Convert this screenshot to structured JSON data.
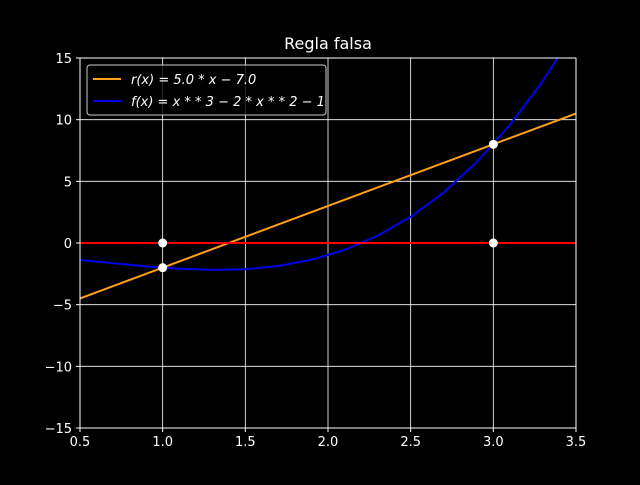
{
  "chart_data": {
    "type": "line",
    "title": "Regla falsa",
    "xlabel": "",
    "ylabel": "",
    "xlim": [
      0.5,
      3.5
    ],
    "ylim": [
      -15,
      15
    ],
    "xticks": [
      0.5,
      1.0,
      1.5,
      2.0,
      2.5,
      3.0,
      3.5
    ],
    "xtick_labels": [
      "0.5",
      "1.0",
      "1.5",
      "2.0",
      "2.5",
      "3.0",
      "3.5"
    ],
    "yticks": [
      -15,
      -10,
      -5,
      0,
      5,
      10,
      15
    ],
    "ytick_labels": [
      "−15",
      "−10",
      "−5",
      "0",
      "5",
      "10",
      "15"
    ],
    "grid": true,
    "legend_position": "top-left",
    "background": "#000000",
    "series": [
      {
        "name": "r(x) = 5.0 * x − 7.0",
        "color": "#ff9f1c",
        "x": [
          0.5,
          3.5
        ],
        "y": [
          -4.5,
          10.5
        ]
      },
      {
        "name": "f(x) = x * * 3 − 2 * x * * 2 − 1",
        "color": "#0000ee",
        "x": [
          0.5,
          0.7,
          0.9,
          1.1,
          1.3,
          1.5,
          1.7,
          1.9,
          2.1,
          2.3,
          2.5,
          2.7,
          2.9,
          3.1,
          3.3,
          3.5
        ],
        "y": [
          -1.375,
          -1.637,
          -1.891,
          -2.089,
          -2.183,
          -2.125,
          -1.867,
          -1.361,
          -0.559,
          0.587,
          2.125,
          4.103,
          6.569,
          9.571,
          13.157,
          17.375
        ]
      },
      {
        "name": "",
        "color": "#ff0000",
        "x": [
          0.5,
          3.5
        ],
        "y": [
          0,
          0
        ]
      }
    ],
    "points": [
      {
        "x": 1,
        "y": 0
      },
      {
        "x": 1,
        "y": -2
      },
      {
        "x": 3,
        "y": 8
      },
      {
        "x": 3,
        "y": 0
      }
    ],
    "point_color": "#ffffff"
  }
}
